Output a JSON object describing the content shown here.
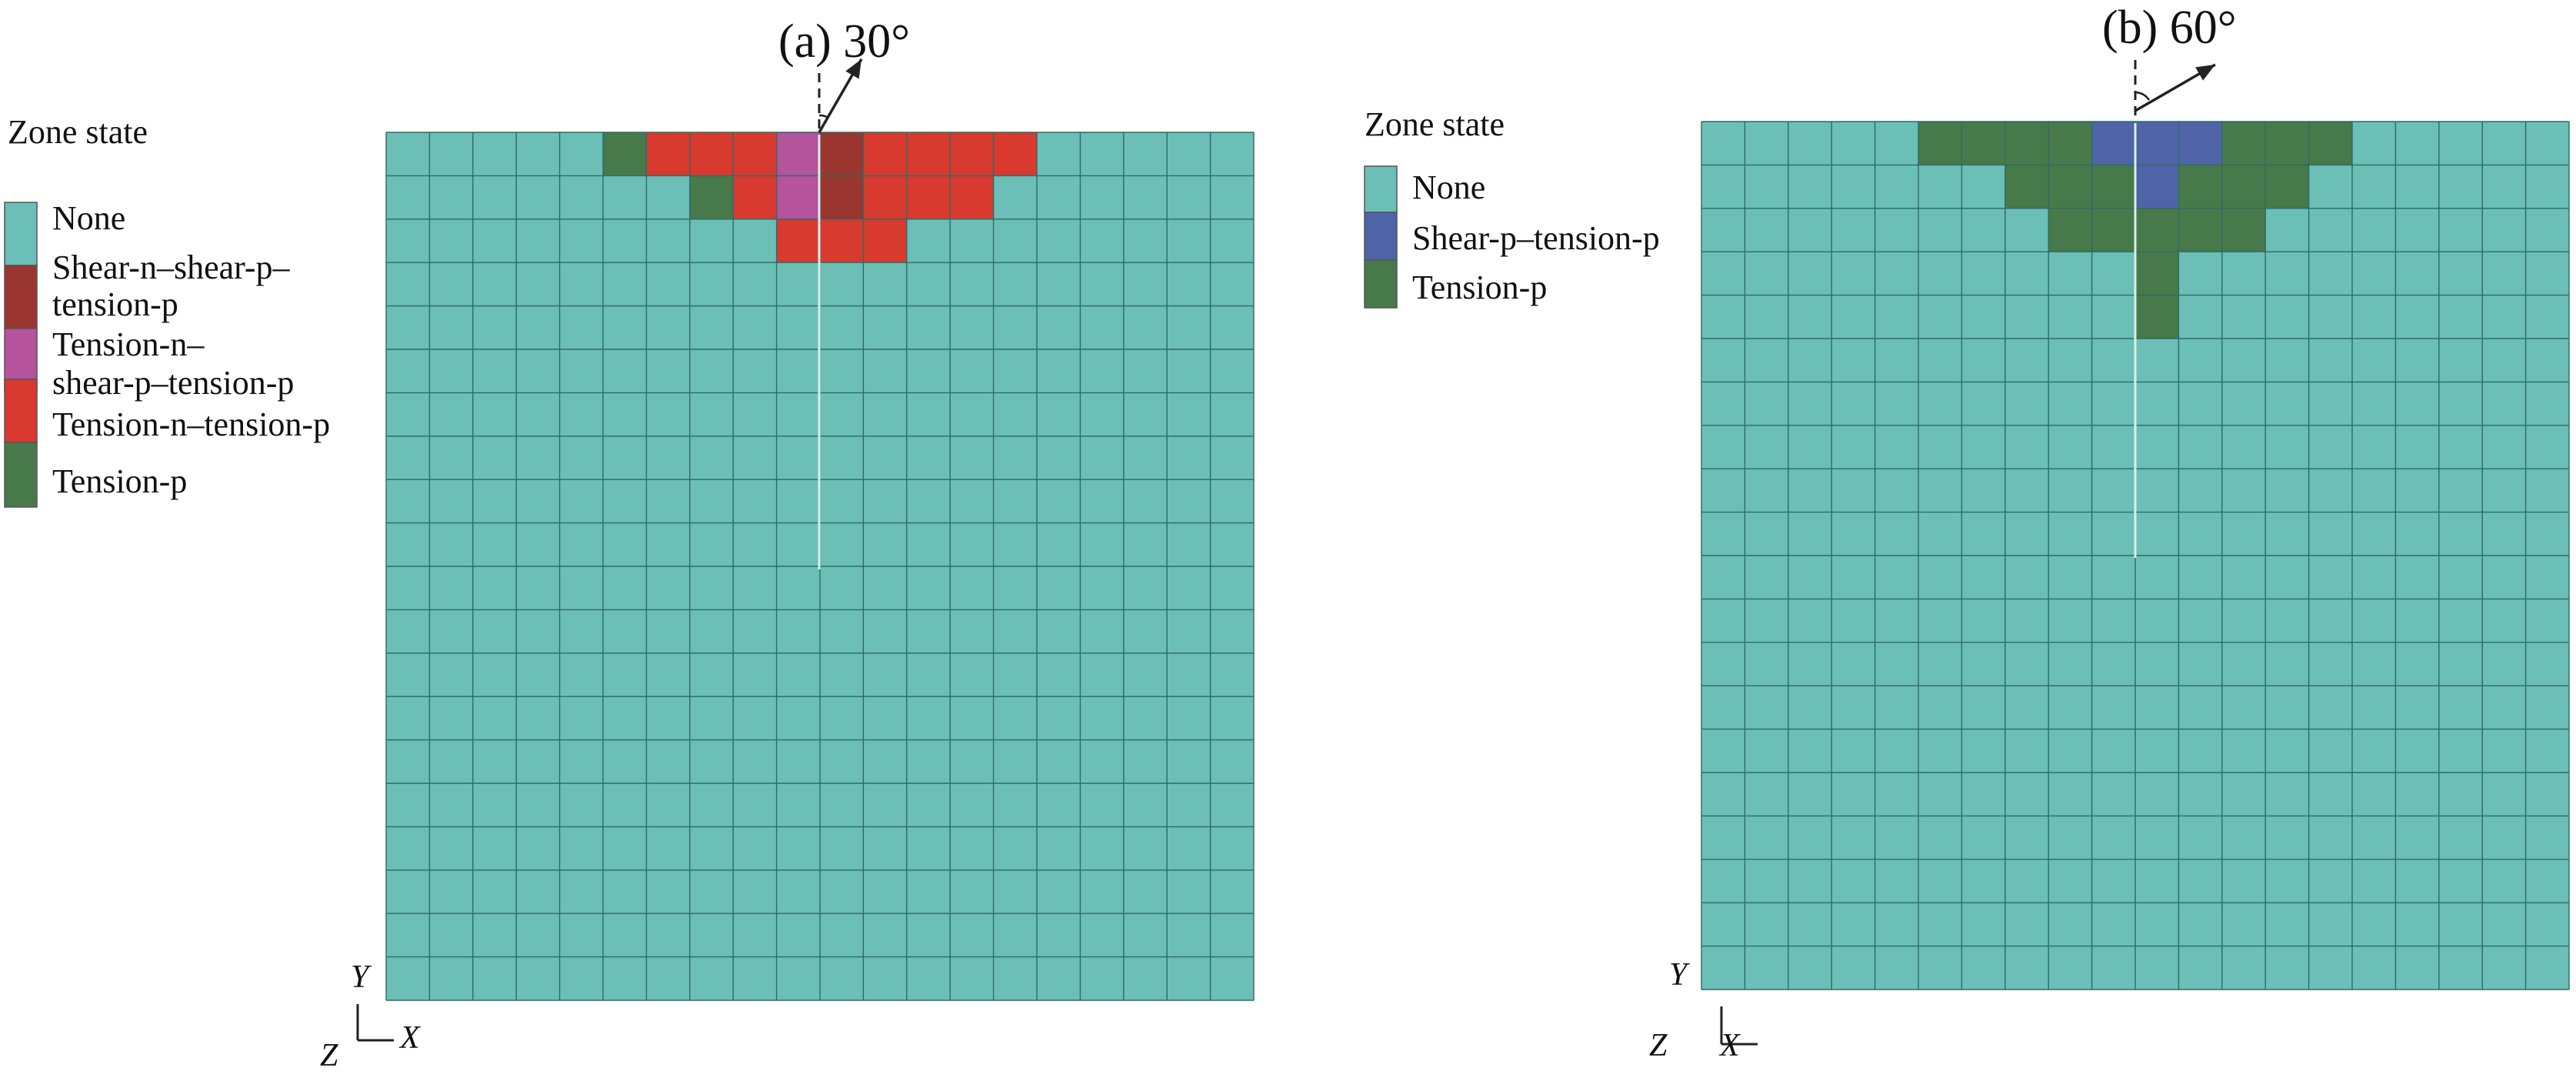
{
  "colors": {
    "None": "#6bbfb6",
    "Shear-n–shear-p–tension-p": "#9b3530",
    "Tension-n–shear-p–tension-p": "#b5539d",
    "Tension-n–tension-p": "#d83a2f",
    "Tension-p": "#48794a",
    "Shear-p–tension-p": "#4f64a6",
    "grid": "#2f6a66"
  },
  "panels": [
    {
      "id": "a",
      "title": "(a) 30°",
      "angle_deg": 30,
      "legend": {
        "title": "Zone state",
        "entries": [
          {
            "state": "None",
            "lines": [
              "None"
            ]
          },
          {
            "state": "Shear-n–shear-p–tension-p",
            "lines": [
              "Shear-n–shear-p–",
              "tension-p"
            ]
          },
          {
            "state": "Tension-n–shear-p–tension-p",
            "lines": [
              "Tension-n–",
              "shear-p–tension-p"
            ]
          },
          {
            "state": "Tension-n–tension-p",
            "lines": [
              "Tension-n–tension-p"
            ]
          },
          {
            "state": "Tension-p",
            "lines": [
              "Tension-p"
            ]
          }
        ]
      },
      "grid": {
        "cols": 20,
        "rows": 20
      },
      "cells": [
        {
          "row": 0,
          "col": 5,
          "state": "Tension-p"
        },
        {
          "row": 0,
          "col": 6,
          "state": "Tension-n–tension-p"
        },
        {
          "row": 0,
          "col": 7,
          "state": "Tension-n–tension-p"
        },
        {
          "row": 0,
          "col": 8,
          "state": "Tension-n–tension-p"
        },
        {
          "row": 0,
          "col": 9,
          "state": "Tension-n–shear-p–tension-p"
        },
        {
          "row": 0,
          "col": 10,
          "state": "Shear-n–shear-p–tension-p"
        },
        {
          "row": 0,
          "col": 11,
          "state": "Tension-n–tension-p"
        },
        {
          "row": 0,
          "col": 12,
          "state": "Tension-n–tension-p"
        },
        {
          "row": 0,
          "col": 13,
          "state": "Tension-n–tension-p"
        },
        {
          "row": 0,
          "col": 14,
          "state": "Tension-n–tension-p"
        },
        {
          "row": 1,
          "col": 7,
          "state": "Tension-p"
        },
        {
          "row": 1,
          "col": 8,
          "state": "Tension-n–tension-p"
        },
        {
          "row": 1,
          "col": 9,
          "state": "Tension-n–shear-p–tension-p"
        },
        {
          "row": 1,
          "col": 10,
          "state": "Shear-n–shear-p–tension-p"
        },
        {
          "row": 1,
          "col": 11,
          "state": "Tension-n–tension-p"
        },
        {
          "row": 1,
          "col": 12,
          "state": "Tension-n–tension-p"
        },
        {
          "row": 1,
          "col": 13,
          "state": "Tension-n–tension-p"
        },
        {
          "row": 2,
          "col": 9,
          "state": "Tension-n–tension-p"
        },
        {
          "row": 2,
          "col": 10,
          "state": "Tension-n–tension-p"
        },
        {
          "row": 2,
          "col": 11,
          "state": "Tension-n–tension-p"
        }
      ],
      "axes": {
        "y": "Y",
        "z": "Z",
        "x": "X"
      }
    },
    {
      "id": "b",
      "title": "(b) 60°",
      "angle_deg": 60,
      "legend": {
        "title": "Zone state",
        "entries": [
          {
            "state": "None",
            "lines": [
              "None"
            ]
          },
          {
            "state": "Shear-p–tension-p",
            "lines": [
              "Shear-p–tension-p"
            ]
          },
          {
            "state": "Tension-p",
            "lines": [
              "Tension-p"
            ]
          }
        ]
      },
      "grid": {
        "cols": 20,
        "rows": 20
      },
      "cells": [
        {
          "row": 0,
          "col": 5,
          "state": "Tension-p"
        },
        {
          "row": 0,
          "col": 6,
          "state": "Tension-p"
        },
        {
          "row": 0,
          "col": 7,
          "state": "Tension-p"
        },
        {
          "row": 0,
          "col": 8,
          "state": "Tension-p"
        },
        {
          "row": 0,
          "col": 9,
          "state": "Shear-p–tension-p"
        },
        {
          "row": 0,
          "col": 10,
          "state": "Shear-p–tension-p"
        },
        {
          "row": 0,
          "col": 11,
          "state": "Shear-p–tension-p"
        },
        {
          "row": 0,
          "col": 12,
          "state": "Tension-p"
        },
        {
          "row": 0,
          "col": 13,
          "state": "Tension-p"
        },
        {
          "row": 0,
          "col": 14,
          "state": "Tension-p"
        },
        {
          "row": 1,
          "col": 7,
          "state": "Tension-p"
        },
        {
          "row": 1,
          "col": 8,
          "state": "Tension-p"
        },
        {
          "row": 1,
          "col": 9,
          "state": "Tension-p"
        },
        {
          "row": 1,
          "col": 10,
          "state": "Shear-p–tension-p"
        },
        {
          "row": 1,
          "col": 11,
          "state": "Tension-p"
        },
        {
          "row": 1,
          "col": 12,
          "state": "Tension-p"
        },
        {
          "row": 1,
          "col": 13,
          "state": "Tension-p"
        },
        {
          "row": 2,
          "col": 8,
          "state": "Tension-p"
        },
        {
          "row": 2,
          "col": 9,
          "state": "Tension-p"
        },
        {
          "row": 2,
          "col": 10,
          "state": "Tension-p"
        },
        {
          "row": 2,
          "col": 11,
          "state": "Tension-p"
        },
        {
          "row": 2,
          "col": 12,
          "state": "Tension-p"
        },
        {
          "row": 3,
          "col": 10,
          "state": "Tension-p"
        },
        {
          "row": 4,
          "col": 10,
          "state": "Tension-p"
        }
      ],
      "axes": {
        "y": "Y",
        "z": "Z",
        "x": "X"
      }
    }
  ]
}
